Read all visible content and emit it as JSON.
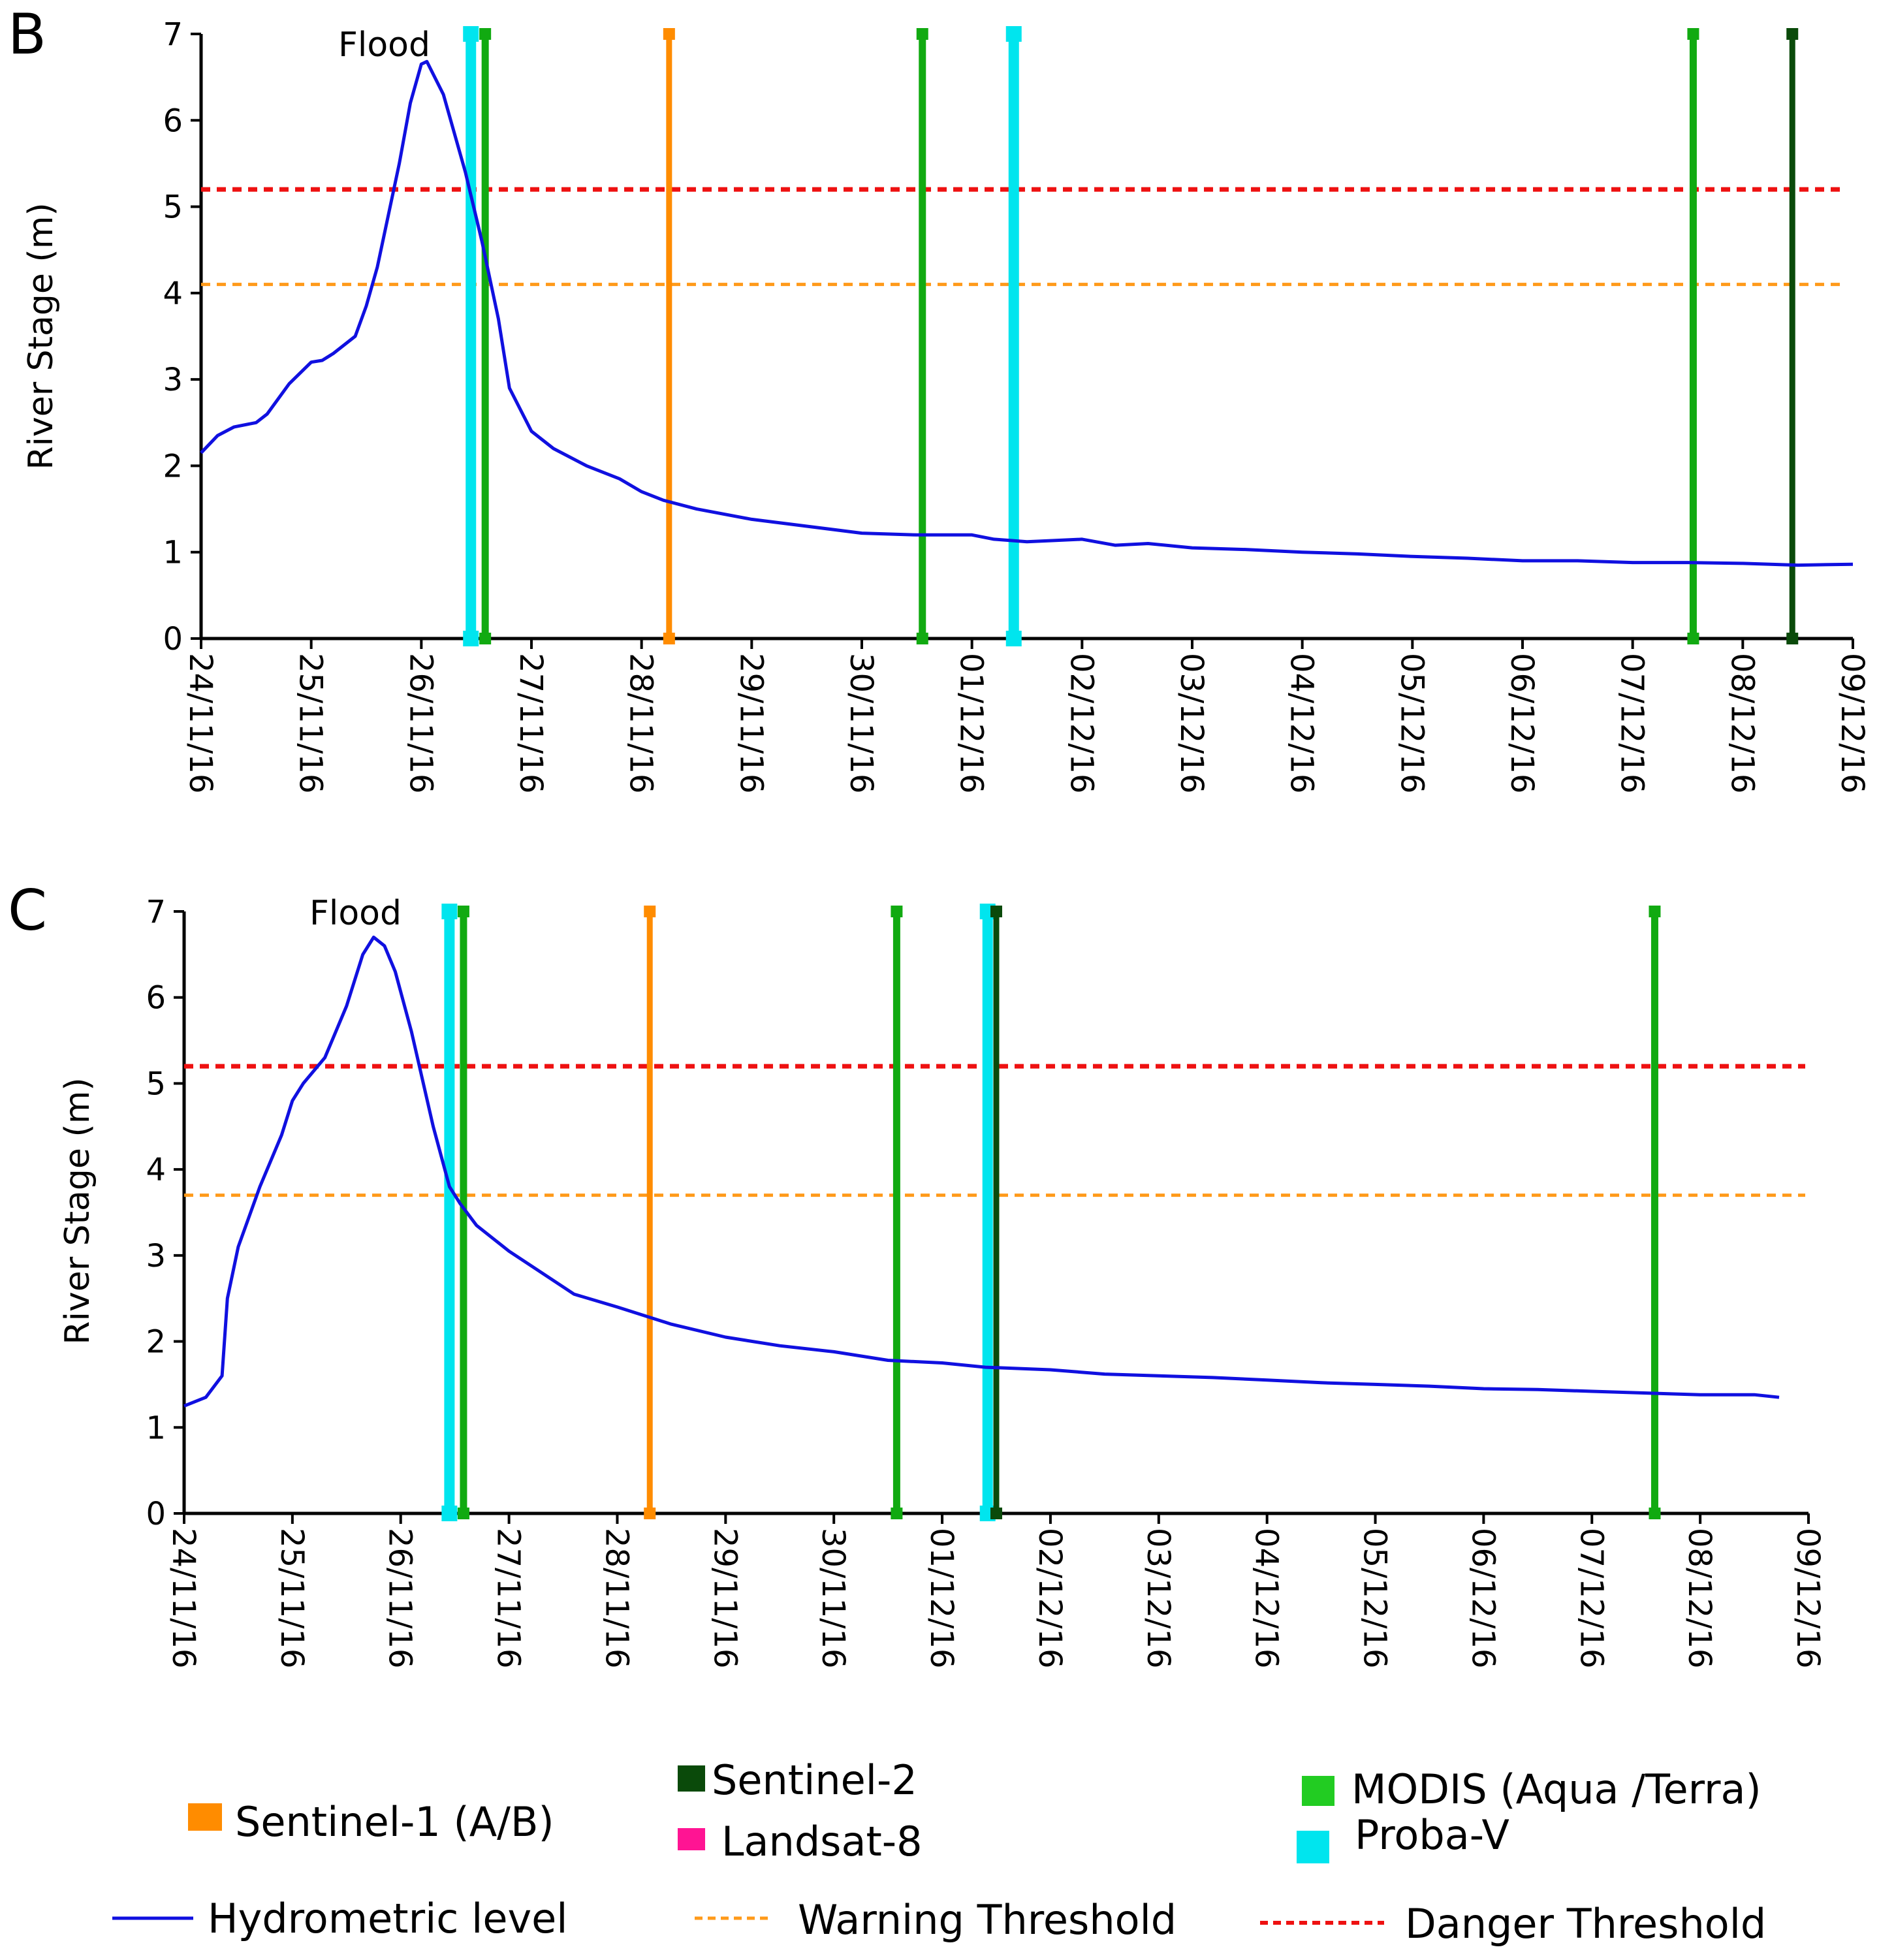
{
  "chart_data": [
    {
      "type": "line",
      "panel": "B",
      "ylabel": "River Stage (m)",
      "xlabel": "",
      "ylim": [
        0,
        7
      ],
      "yticks": [
        "0",
        "1",
        "2",
        "3",
        "4",
        "5",
        "6",
        "7"
      ],
      "x_range": [
        0,
        15
      ],
      "categories": [
        "24/11/16",
        "25/11/16",
        "26/11/16",
        "27/11/16",
        "28/11/16",
        "29/11/16",
        "30/11/16",
        "01/12/16",
        "02/12/16",
        "03/12/16",
        "04/12/16",
        "05/12/16",
        "06/12/16",
        "07/12/16",
        "08/12/16",
        "09/12/16"
      ],
      "annotation": "Flood",
      "series": [
        {
          "name": "Hydrometric level",
          "x": [
            0,
            0.15,
            0.3,
            0.5,
            0.6,
            0.8,
            1.0,
            1.1,
            1.2,
            1.4,
            1.5,
            1.6,
            1.8,
            1.9,
            2.0,
            2.05,
            2.2,
            2.4,
            2.55,
            2.7,
            2.8,
            3.0,
            3.2,
            3.5,
            3.8,
            4.0,
            4.2,
            4.5,
            5.0,
            5.5,
            6.0,
            6.5,
            7.0,
            7.2,
            7.5,
            8.0,
            8.3,
            8.6,
            9.0,
            9.5,
            10.0,
            10.5,
            11.0,
            11.5,
            12.0,
            12.5,
            13.0,
            13.5,
            14.0,
            14.5,
            15.0
          ],
          "values": [
            2.15,
            2.35,
            2.45,
            2.5,
            2.6,
            2.95,
            3.2,
            3.22,
            3.3,
            3.5,
            3.85,
            4.3,
            5.5,
            6.2,
            6.65,
            6.68,
            6.3,
            5.4,
            4.6,
            3.7,
            2.9,
            2.4,
            2.2,
            2.0,
            1.85,
            1.7,
            1.6,
            1.5,
            1.38,
            1.3,
            1.22,
            1.2,
            1.2,
            1.15,
            1.12,
            1.15,
            1.08,
            1.1,
            1.05,
            1.03,
            1.0,
            0.98,
            0.95,
            0.93,
            0.9,
            0.9,
            0.88,
            0.88,
            0.87,
            0.85,
            0.86
          ]
        }
      ],
      "thresholds": {
        "warning": 4.1,
        "danger": 5.2
      },
      "acquisitions": [
        {
          "sensor": "Proba-V",
          "x": 2.45
        },
        {
          "sensor": "MODIS (Aqua /Terra)",
          "x": 2.58
        },
        {
          "sensor": "Sentinel-1 (A/B)",
          "x": 4.25
        },
        {
          "sensor": "MODIS (Aqua /Terra)",
          "x": 6.55
        },
        {
          "sensor": "Proba-V",
          "x": 7.38
        },
        {
          "sensor": "MODIS (Aqua /Terra)",
          "x": 13.55
        },
        {
          "sensor": "Sentinel-2",
          "x": 14.45
        }
      ]
    },
    {
      "type": "line",
      "panel": "C",
      "ylabel": "River Stage (m)",
      "xlabel": "",
      "ylim": [
        0,
        7
      ],
      "yticks": [
        "0",
        "1",
        "2",
        "3",
        "4",
        "5",
        "6",
        "7"
      ],
      "x_range": [
        0,
        15
      ],
      "categories": [
        "24/11/16",
        "25/11/16",
        "26/11/16",
        "27/11/16",
        "28/11/16",
        "29/11/16",
        "30/11/16",
        "01/12/16",
        "02/12/16",
        "03/12/16",
        "04/12/16",
        "05/12/16",
        "06/12/16",
        "07/12/16",
        "08/12/16",
        "09/12/16"
      ],
      "annotation": "Flood",
      "series": [
        {
          "name": "Hydrometric level",
          "x": [
            0,
            0.2,
            0.35,
            0.4,
            0.5,
            0.7,
            0.9,
            1.0,
            1.1,
            1.3,
            1.5,
            1.65,
            1.75,
            1.85,
            1.95,
            2.1,
            2.3,
            2.45,
            2.55,
            2.7,
            3.0,
            3.3,
            3.6,
            4.0,
            4.5,
            5.0,
            5.5,
            6.0,
            6.5,
            7.0,
            7.4,
            8.0,
            8.5,
            9.0,
            9.5,
            10.0,
            10.5,
            11.0,
            11.5,
            12.0,
            12.5,
            13.0,
            13.5,
            14.0,
            14.5,
            15.0
          ],
          "values": [
            1.25,
            1.35,
            1.6,
            2.5,
            3.1,
            3.8,
            4.4,
            4.8,
            5.0,
            5.3,
            5.9,
            6.5,
            6.7,
            6.6,
            6.3,
            5.6,
            4.5,
            3.8,
            3.6,
            3.35,
            3.05,
            2.8,
            2.55,
            2.4,
            2.2,
            2.05,
            1.95,
            1.88,
            1.78,
            1.75,
            1.7,
            1.67,
            1.62,
            1.6,
            1.58,
            1.55,
            1.52,
            1.5,
            1.48,
            1.45,
            1.44,
            1.42,
            1.4,
            1.38,
            1.38,
            1.35
          ]
        }
      ],
      "thresholds": {
        "warning": 3.7,
        "danger": 5.2
      },
      "acquisitions": [
        {
          "sensor": "Proba-V",
          "x": 2.45
        },
        {
          "sensor": "MODIS (Aqua /Terra)",
          "x": 2.58
        },
        {
          "sensor": "Sentinel-1 (A/B)",
          "x": 4.3
        },
        {
          "sensor": "MODIS (Aqua /Terra)",
          "x": 6.58
        },
        {
          "sensor": "Proba-V",
          "x": 7.42
        },
        {
          "sensor": "Sentinel-2",
          "x": 7.5
        },
        {
          "sensor": "MODIS (Aqua /Terra)",
          "x": 13.58
        }
      ]
    }
  ],
  "colors": {
    "hydrometric": "#1010e0",
    "warning": "#ff9a1a",
    "danger": "#ee1111",
    "sentinel1": "#ff8c00",
    "sentinel2": "#0a4a0a",
    "landsat8": "#ff1493",
    "modis": "#11aa11",
    "modis_legend": "#22cc22",
    "probav": "#00e5ee"
  },
  "legend": {
    "sentinel1": "Sentinel-1 (A/B)",
    "sentinel2": "Sentinel-2",
    "landsat8": "Landsat-8",
    "modis": "MODIS (Aqua /Terra)",
    "probav": "Proba-V",
    "hydrometric": "Hydrometric level",
    "warning": "Warning Threshold",
    "danger": "Danger Threshold"
  }
}
